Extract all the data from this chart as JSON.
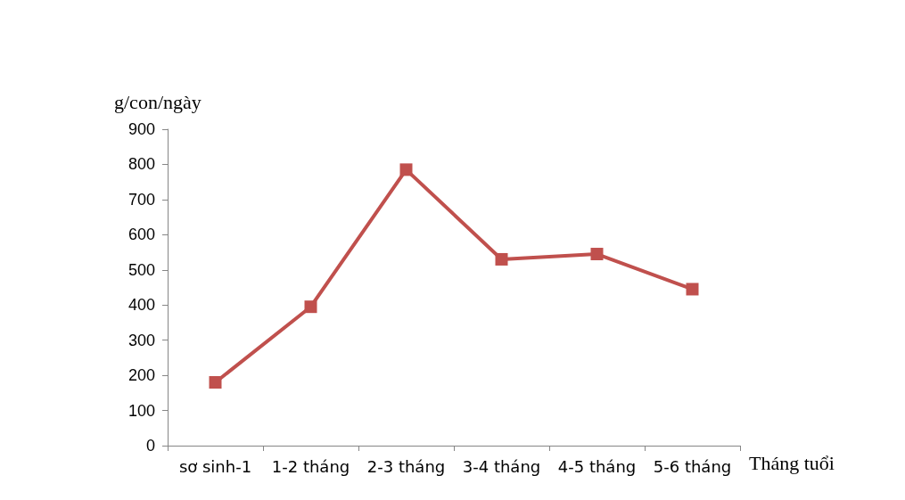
{
  "chart_data": {
    "type": "line",
    "ylabel": "g/con/ngày",
    "xlabel": "Tháng tuổi",
    "categories": [
      "sơ sinh-1",
      "1-2 tháng",
      "2-3 tháng",
      "3-4 tháng",
      "4-5 tháng",
      "5-6 tháng"
    ],
    "series": [
      {
        "color": "#c0504d",
        "values": [
          180,
          395,
          785,
          530,
          545,
          445
        ]
      }
    ],
    "ylim": [
      0,
      900
    ],
    "yticks": [
      0,
      100,
      200,
      300,
      400,
      500,
      600,
      700,
      800,
      900
    ],
    "grid": false,
    "marker": "square",
    "line_style": "solid"
  }
}
